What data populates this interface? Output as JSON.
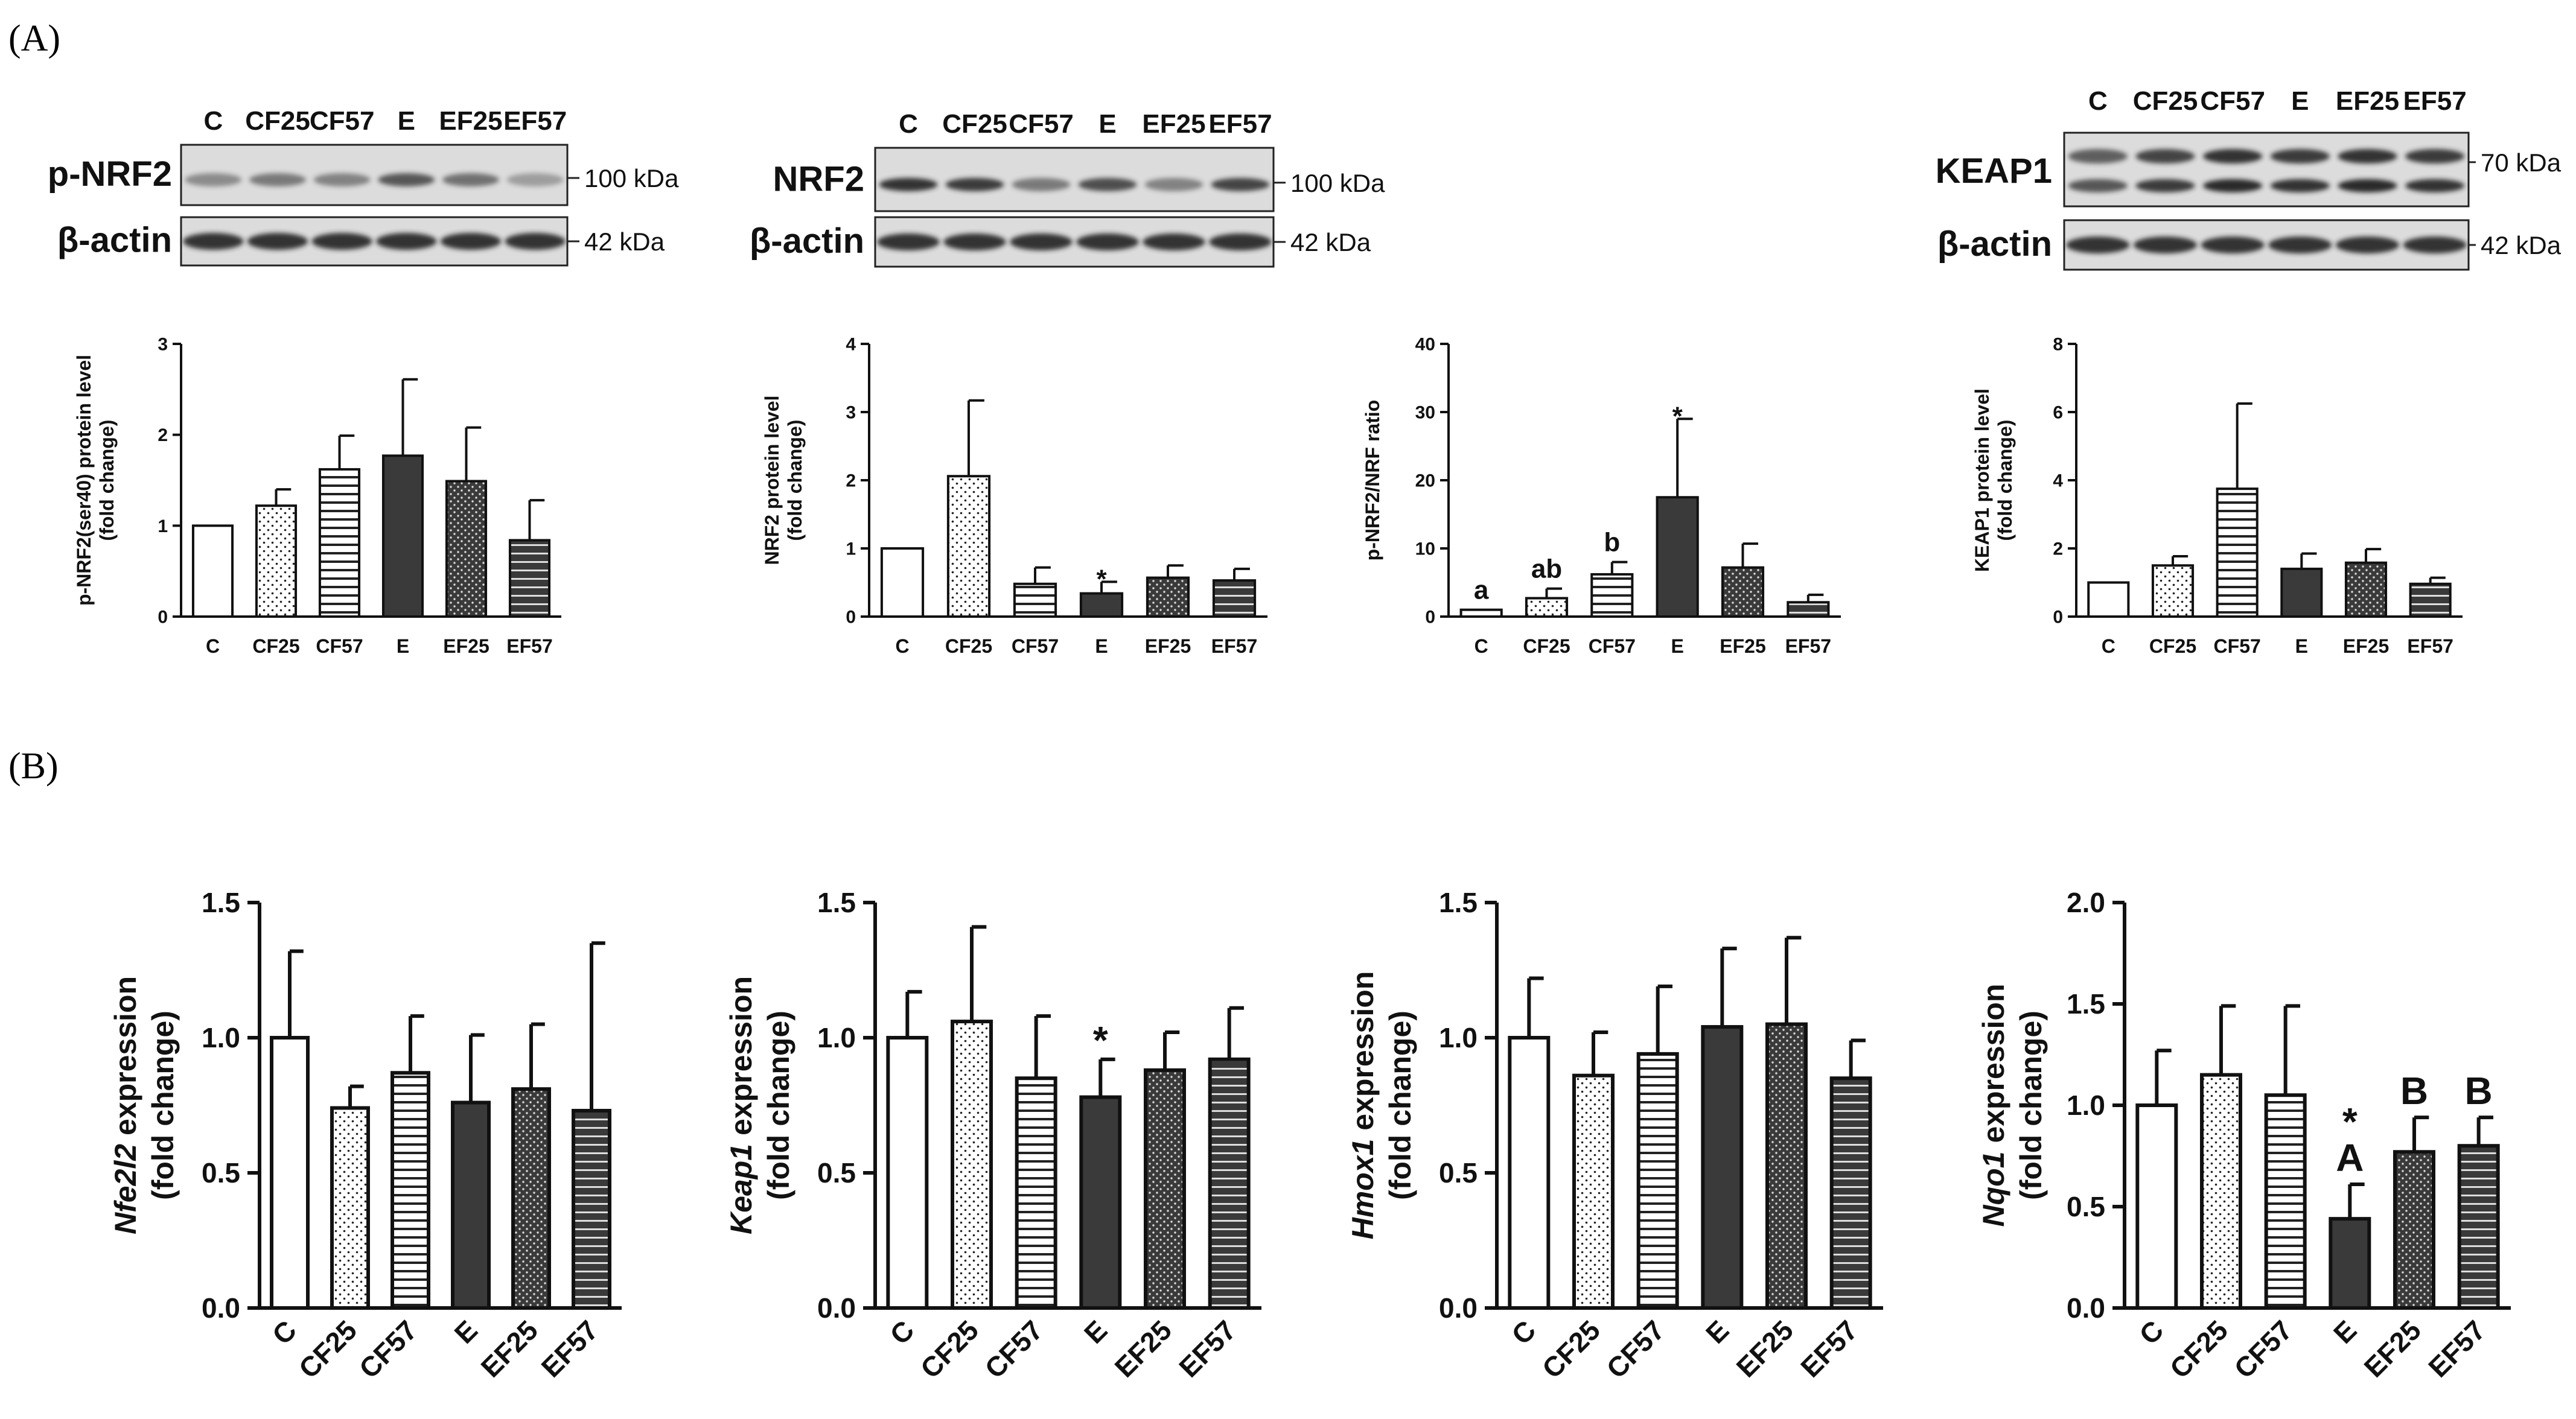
{
  "panel_labels": {
    "a": "(A)",
    "b": "(B)"
  },
  "colors": {
    "ink": "#111111",
    "dark_bar": "#3a3a3a",
    "band": "#2a2a2a",
    "blot_bg": "#dcdcdc"
  },
  "blots": [
    {
      "protein": "p-NRF2",
      "loading": "β-actin",
      "lanes": [
        "C",
        "CF25",
        "CF57",
        "E",
        "EF25",
        "EF57"
      ],
      "mw_top": "100 kDa",
      "mw_bottom": "42 kDa",
      "band_intensity": [
        0.45,
        0.55,
        0.5,
        0.75,
        0.6,
        0.35
      ]
    },
    {
      "protein": "NRF2",
      "loading": "β-actin",
      "lanes": [
        "C",
        "CF25",
        "CF57",
        "E",
        "EF25",
        "EF57"
      ],
      "mw_top": "100 kDa",
      "mw_bottom": "42 kDa",
      "band_intensity": [
        0.95,
        0.9,
        0.55,
        0.8,
        0.5,
        0.85
      ]
    },
    {
      "protein": "KEAP1",
      "loading": "β-actin",
      "lanes": [
        "C",
        "CF25",
        "CF57",
        "E",
        "EF25",
        "EF57"
      ],
      "mw_top": "70 kDa",
      "mw_bottom": "42 kDa",
      "band_intensity": [
        0.7,
        0.85,
        0.95,
        0.9,
        0.95,
        0.9
      ]
    }
  ],
  "chart_data": [
    {
      "id": "a1",
      "type": "bar",
      "ylabel": [
        "p-NRF2(ser40) protein level",
        "(fold change)"
      ],
      "categories": [
        "C",
        "CF25",
        "CF57",
        "E",
        "EF25",
        "EF57"
      ],
      "values": [
        1.0,
        1.22,
        1.62,
        1.77,
        1.49,
        0.84
      ],
      "errors": [
        0,
        0.18,
        0.37,
        0.84,
        0.59,
        0.44
      ],
      "ylim": [
        0,
        3
      ],
      "ticks": [
        "0",
        "1",
        "2",
        "3"
      ],
      "annotations": [
        "",
        "",
        "",
        "",
        "",
        ""
      ]
    },
    {
      "id": "a2",
      "type": "bar",
      "ylabel": [
        "NRF2 protein level",
        "(fold change)"
      ],
      "categories": [
        "C",
        "CF25",
        "CF57",
        "E",
        "EF25",
        "EF57"
      ],
      "values": [
        1.0,
        2.06,
        0.48,
        0.34,
        0.57,
        0.53
      ],
      "errors": [
        0,
        1.11,
        0.24,
        0.17,
        0.18,
        0.17
      ],
      "ylim": [
        0,
        4
      ],
      "ticks": [
        "0",
        "1",
        "2",
        "3",
        "4"
      ],
      "annotations": [
        "",
        "",
        "",
        "*",
        "",
        ""
      ]
    },
    {
      "id": "a3",
      "type": "bar",
      "ylabel": [
        "p-NRF2/NRF ratio"
      ],
      "categories": [
        "C",
        "CF25",
        "CF57",
        "E",
        "EF25",
        "EF57"
      ],
      "values": [
        1.0,
        2.7,
        6.2,
        17.5,
        7.2,
        2.1
      ],
      "errors": [
        0,
        1.4,
        1.8,
        11.5,
        3.5,
        1.1
      ],
      "ylim": [
        0,
        40
      ],
      "ticks": [
        "0",
        "10",
        "20",
        "30",
        "40"
      ],
      "annotations": [
        "a",
        "ab",
        "b",
        "*",
        "",
        ""
      ]
    },
    {
      "id": "a4",
      "type": "bar",
      "ylabel": [
        "KEAP1 protein level",
        "(fold change)"
      ],
      "categories": [
        "C",
        "CF25",
        "CF57",
        "E",
        "EF25",
        "EF57"
      ],
      "values": [
        1.0,
        1.5,
        3.75,
        1.4,
        1.58,
        0.96
      ],
      "errors": [
        0,
        0.27,
        2.5,
        0.45,
        0.4,
        0.18
      ],
      "ylim": [
        0,
        8
      ],
      "ticks": [
        "0",
        "2",
        "4",
        "6",
        "8"
      ],
      "annotations": [
        "",
        "",
        "",
        "",
        "",
        ""
      ]
    },
    {
      "id": "b1",
      "type": "bar",
      "gene": "Nfe2l2",
      "ylabel_suffix": " expression",
      "ylabel2": "(fold change)",
      "categories": [
        "C",
        "CF25",
        "CF57",
        "E",
        "EF25",
        "EF57"
      ],
      "values": [
        1.0,
        0.74,
        0.87,
        0.76,
        0.81,
        0.73
      ],
      "errors": [
        0.32,
        0.08,
        0.21,
        0.25,
        0.24,
        0.62
      ],
      "ylim": [
        0,
        1.5
      ],
      "ticks": [
        "0.0",
        "0.5",
        "1.0",
        "1.5"
      ],
      "annotations": [
        "",
        "",
        "",
        "",
        "",
        ""
      ],
      "annotations2": [
        "",
        "",
        "",
        "",
        "",
        ""
      ]
    },
    {
      "id": "b2",
      "type": "bar",
      "gene": "Keap1",
      "ylabel_suffix": " expression",
      "ylabel2": "(fold change)",
      "categories": [
        "C",
        "CF25",
        "CF57",
        "E",
        "EF25",
        "EF57"
      ],
      "values": [
        1.0,
        1.06,
        0.85,
        0.78,
        0.88,
        0.92
      ],
      "errors": [
        0.17,
        0.35,
        0.23,
        0.14,
        0.14,
        0.19
      ],
      "ylim": [
        0,
        1.5
      ],
      "ticks": [
        "0.0",
        "0.5",
        "1.0",
        "1.5"
      ],
      "annotations": [
        "",
        "",
        "",
        "*",
        "",
        ""
      ],
      "annotations2": [
        "",
        "",
        "",
        "",
        "",
        ""
      ]
    },
    {
      "id": "b3",
      "type": "bar",
      "gene": "Hmox1",
      "ylabel_suffix": " expression",
      "ylabel2": "(fold change)",
      "categories": [
        "C",
        "CF25",
        "CF57",
        "E",
        "EF25",
        "EF57"
      ],
      "values": [
        1.0,
        0.86,
        0.94,
        1.04,
        1.05,
        0.85
      ],
      "errors": [
        0.22,
        0.16,
        0.25,
        0.29,
        0.32,
        0.14
      ],
      "ylim": [
        0,
        1.5
      ],
      "ticks": [
        "0.0",
        "0.5",
        "1.0",
        "1.5"
      ],
      "annotations": [
        "",
        "",
        "",
        "",
        "",
        ""
      ],
      "annotations2": [
        "",
        "",
        "",
        "",
        "",
        ""
      ]
    },
    {
      "id": "b4",
      "type": "bar",
      "gene": "Nqo1",
      "ylabel_suffix": " expression",
      "ylabel2": "(fold change)",
      "categories": [
        "C",
        "CF25",
        "CF57",
        "E",
        "EF25",
        "EF57"
      ],
      "values": [
        1.0,
        1.15,
        1.05,
        0.44,
        0.77,
        0.8
      ],
      "errors": [
        0.27,
        0.34,
        0.44,
        0.17,
        0.17,
        0.14
      ],
      "ylim": [
        0,
        2.0
      ],
      "ticks": [
        "0.0",
        "0.5",
        "1.0",
        "1.5",
        "2.0"
      ],
      "annotations": [
        "",
        "",
        "",
        "A",
        "B",
        "B"
      ],
      "annotations2": [
        "",
        "",
        "",
        "*",
        "",
        ""
      ]
    }
  ]
}
